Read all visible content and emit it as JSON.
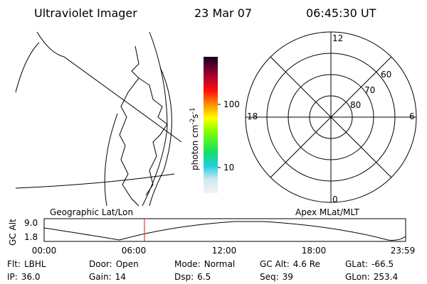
{
  "header": {
    "title": "Ultraviolet Imager",
    "date": "23 Mar 07",
    "time": "06:45:30 UT"
  },
  "map": {
    "label": "Geographic Lat/Lon"
  },
  "colorbar": {
    "label": "photon cm",
    "exp1": "-2",
    "label2": "s",
    "exp2": "-1",
    "ticks": [
      "100",
      "10"
    ]
  },
  "polar": {
    "label": "Apex MLat/MLT",
    "mlt_labels": [
      "12",
      "6",
      "0",
      "18"
    ],
    "lat_labels": [
      "60",
      "70",
      "80"
    ]
  },
  "timeline": {
    "y_label": "GC Alt",
    "y_ticks": [
      "9.0",
      "1.8"
    ],
    "x_ticks": [
      "00:00",
      "06:00",
      "12:00",
      "18:00",
      "23:59"
    ]
  },
  "status": [
    [
      {
        "label": "Flt:",
        "value": "LBHL"
      },
      {
        "label": "Door:",
        "value": "Open"
      },
      {
        "label": "Mode:",
        "value": "Normal"
      },
      {
        "label": "GC Alt:",
        "value": "4.6 Re"
      },
      {
        "label": "GLat:",
        "value": "-66.5"
      }
    ],
    [
      {
        "label": "IP:",
        "value": "36.0"
      },
      {
        "label": "Gain:",
        "value": "14"
      },
      {
        "label": "Dsp:",
        "value": "6.5"
      },
      {
        "label": "Seq:",
        "value": "39"
      },
      {
        "label": "GLon:",
        "value": "253.4"
      }
    ]
  ]
}
